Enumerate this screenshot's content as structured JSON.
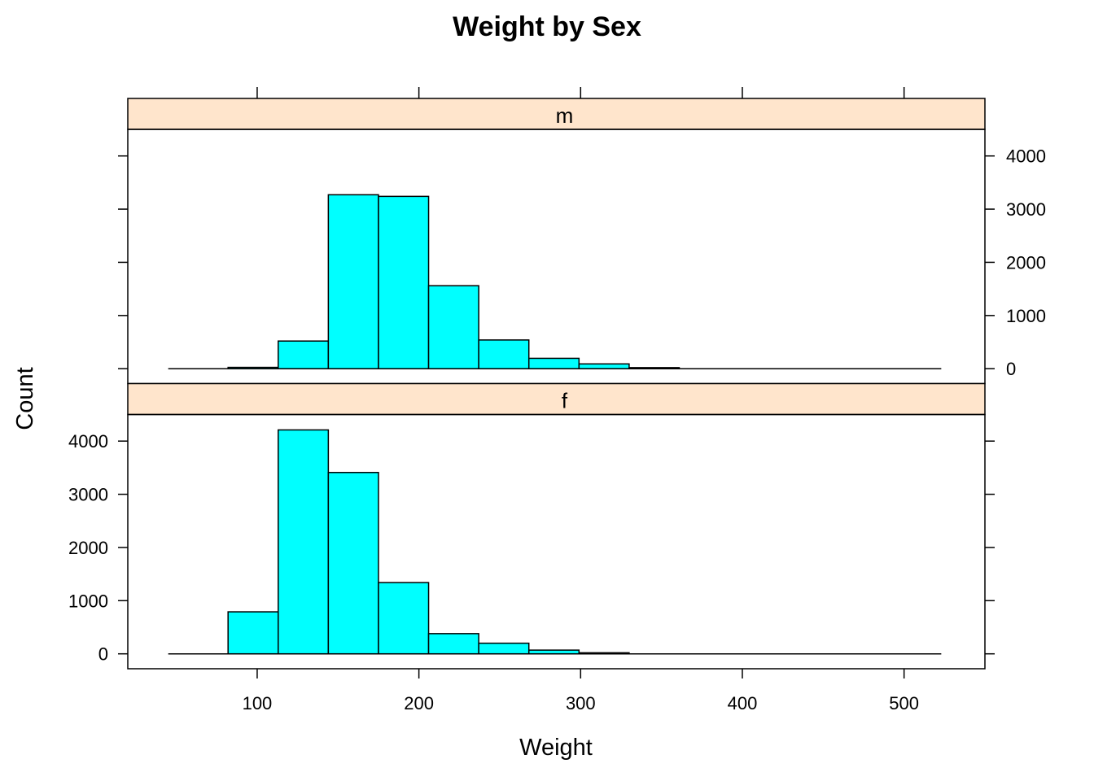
{
  "chart_data": {
    "type": "bar",
    "title": "Weight by Sex",
    "xlabel": "Weight",
    "ylabel": "Count",
    "xlim": [
      20,
      550
    ],
    "ylim": [
      -280,
      4500
    ],
    "x_ticks": [
      "100",
      "200",
      "300",
      "400",
      "500"
    ],
    "y_ticks": [
      "0",
      "1000",
      "2000",
      "3000",
      "4000"
    ],
    "strip_color": "#FFE5CC",
    "bar_color": "#00FFFF",
    "bin_edges": [
      45,
      82,
      113,
      144,
      175,
      206,
      237,
      268,
      299,
      330,
      361,
      523
    ],
    "panels": [
      {
        "name": "m",
        "counts": [
          0,
          25,
          520,
          3270,
          3240,
          1560,
          540,
          195,
          90,
          20,
          0
        ]
      },
      {
        "name": "f",
        "counts": [
          0,
          790,
          4210,
          3410,
          1340,
          380,
          200,
          70,
          20,
          0,
          0
        ]
      }
    ]
  }
}
